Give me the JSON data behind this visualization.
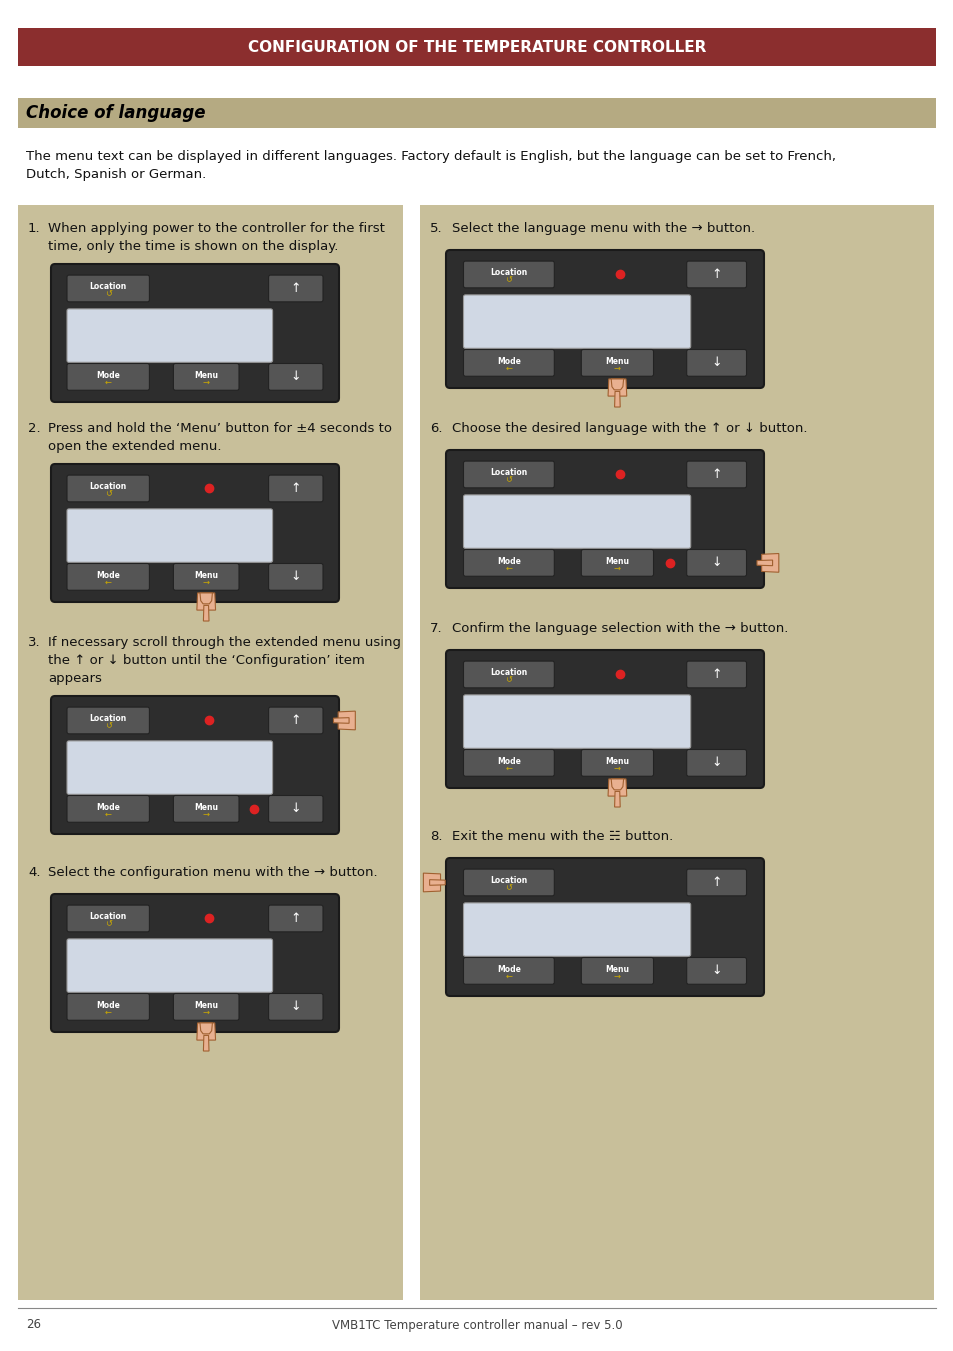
{
  "title": "CONFIGURATION OF THE TEMPERATURE CONTROLLER",
  "title_bg": "#8B2E2E",
  "title_color": "#FFFFFF",
  "section_title": "Choice of language",
  "section_bg": "#B5AA82",
  "section_color": "#000000",
  "body_line1": "The menu text can be displayed in different languages. Factory default is English, but the language can be set to French,",
  "body_line2": "Dutch, Spanish or German.",
  "bg_color": "#FFFFFF",
  "panel_bg": "#C8BF9A",
  "controller_bg": "#2D2D2D",
  "controller_top_bg": "#3A3A3A",
  "display_bg": "#D0D8E4",
  "button_bg": "#555555",
  "button_border": "#222222",
  "red_dot_color": "#DD2222",
  "yellow_color": "#CCAA00",
  "footer_text": "VMB1TC Temperature controller manual – rev 5.0",
  "page_num": "26",
  "steps": [
    {
      "num": "1.",
      "text": "When applying power to the controller for the first\ntime, only the time is shown on the display.",
      "red_top": false,
      "red_bot": false,
      "hand": "none"
    },
    {
      "num": "2.",
      "text": "Press and hold the ‘Menu’ button for ±4 seconds to\nopen the extended menu.",
      "red_top": true,
      "red_bot": false,
      "hand": "below_menu"
    },
    {
      "num": "3.",
      "text": "If necessary scroll through the extended menu using\nthe ↑ or ↓ button until the ‘Configuration’ item\nappears",
      "red_top": true,
      "red_bot": true,
      "hand": "right_of_up"
    },
    {
      "num": "4.",
      "text": "Select the configuration menu with the → button.",
      "red_top": true,
      "red_bot": false,
      "hand": "below_menu"
    },
    {
      "num": "5.",
      "text": "Select the language menu with the → button.",
      "red_top": true,
      "red_bot": false,
      "hand": "below_menu"
    },
    {
      "num": "6.",
      "text": "Choose the desired language with the ↑ or ↓ button.",
      "red_top": true,
      "red_bot": true,
      "hand": "right_of_down"
    },
    {
      "num": "7.",
      "text": "Confirm the language selection with the → button.",
      "red_top": true,
      "red_bot": false,
      "hand": "below_menu"
    },
    {
      "num": "8.",
      "text": "Exit the menu with the ☵ button.",
      "red_top": false,
      "red_bot": false,
      "hand": "left_of_loc"
    }
  ]
}
